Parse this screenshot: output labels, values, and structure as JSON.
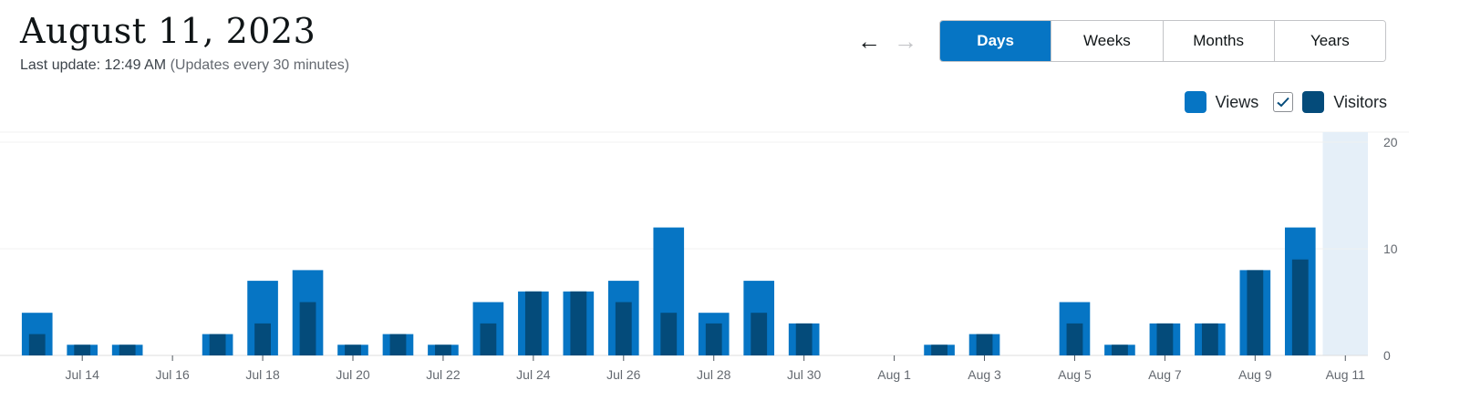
{
  "header": {
    "title": "August 11, 2023",
    "last_update": "Last update: 12:49 AM",
    "update_note": "(Updates every 30 minutes)"
  },
  "nav": {
    "prev_icon": "arrow-left-icon",
    "next_icon": "arrow-right-icon"
  },
  "period_tabs": {
    "items": [
      "Days",
      "Weeks",
      "Months",
      "Years"
    ],
    "selected": "Days"
  },
  "legend": {
    "views_label": "Views",
    "visitors_label": "Visitors",
    "visitors_checked": true,
    "check_icon": "checkmark-icon"
  },
  "colors": {
    "views": "#0675c4",
    "visitors": "#044b7a",
    "highlight": "#e5eff8",
    "grid": "#f0f0f1",
    "axis_text": "#646970"
  },
  "chart_data": {
    "type": "bar",
    "title": "",
    "xlabel": "",
    "ylabel": "",
    "ylim": [
      0,
      20
    ],
    "yticks": [
      0,
      10,
      20
    ],
    "categories": [
      "Jul 13",
      "Jul 14",
      "Jul 15",
      "Jul 16",
      "Jul 17",
      "Jul 18",
      "Jul 19",
      "Jul 20",
      "Jul 21",
      "Jul 22",
      "Jul 23",
      "Jul 24",
      "Jul 25",
      "Jul 26",
      "Jul 27",
      "Jul 28",
      "Jul 29",
      "Jul 30",
      "Jul 31",
      "Aug 1",
      "Aug 2",
      "Aug 3",
      "Aug 4",
      "Aug 5",
      "Aug 6",
      "Aug 7",
      "Aug 8",
      "Aug 9",
      "Aug 10",
      "Aug 11"
    ],
    "xtick_labels": [
      "Jul 14",
      "Jul 16",
      "Jul 18",
      "Jul 20",
      "Jul 22",
      "Jul 24",
      "Jul 26",
      "Jul 28",
      "Jul 30",
      "Aug 1",
      "Aug 3",
      "Aug 5",
      "Aug 7",
      "Aug 9",
      "Aug 11"
    ],
    "series": [
      {
        "name": "Views",
        "values": [
          4,
          1,
          1,
          0,
          2,
          7,
          8,
          1,
          2,
          1,
          5,
          6,
          6,
          7,
          12,
          4,
          7,
          3,
          0,
          0,
          1,
          2,
          0,
          5,
          1,
          3,
          3,
          8,
          12,
          0
        ]
      },
      {
        "name": "Visitors",
        "values": [
          2,
          1,
          1,
          0,
          2,
          3,
          5,
          1,
          2,
          1,
          3,
          6,
          6,
          5,
          4,
          3,
          4,
          3,
          0,
          0,
          1,
          2,
          0,
          3,
          1,
          3,
          3,
          8,
          9,
          0
        ]
      }
    ],
    "highlighted_category": "Aug 11",
    "grid": true,
    "legend_position": "top-right"
  }
}
